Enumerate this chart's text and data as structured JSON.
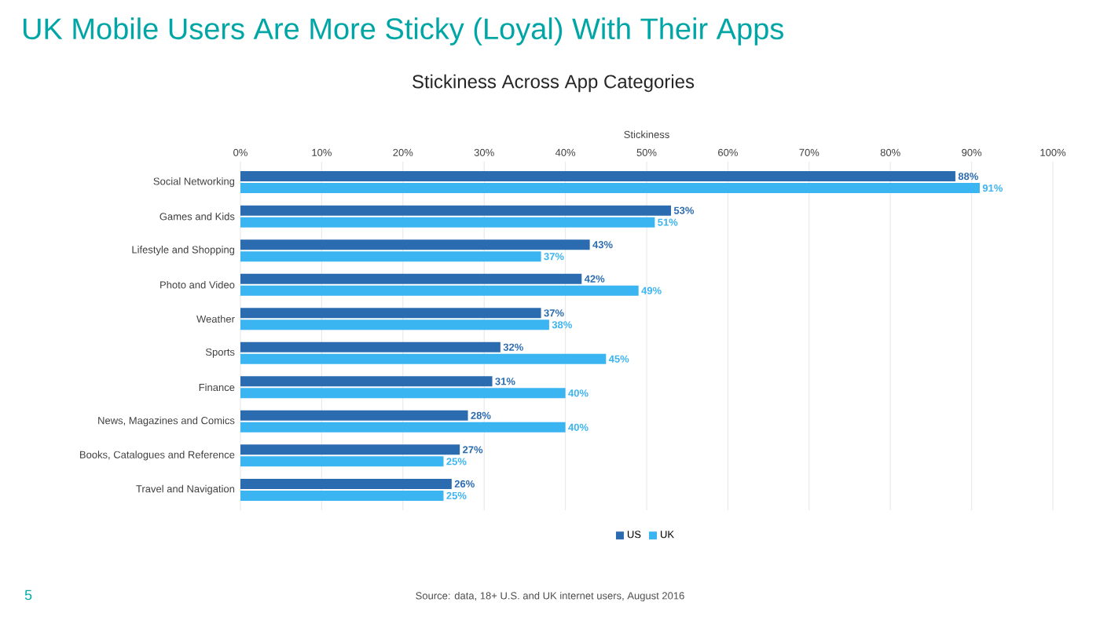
{
  "chart_data": {
    "type": "bar",
    "orientation": "horizontal",
    "title": "UK Mobile Users Are More Sticky (Loyal) With Their Apps",
    "subtitle": "Stickiness Across App Categories",
    "xlabel": "Stickiness",
    "categories": [
      "Social Networking",
      "Games and Kids",
      "Lifestyle and Shopping",
      "Photo and Video",
      "Weather",
      "Sports",
      "Finance",
      "News, Magazines and Comics",
      "Books, Catalogues and Reference",
      "Travel and Navigation"
    ],
    "series": [
      {
        "name": "US",
        "color": "#2b6cb0",
        "values": [
          88,
          53,
          43,
          42,
          37,
          32,
          31,
          28,
          27,
          26
        ],
        "value_labels": [
          "88%",
          "53%",
          "43%",
          "42%",
          "37%",
          "32%",
          "31%",
          "28%",
          "27%",
          "26%"
        ]
      },
      {
        "name": "UK",
        "color": "#3bb4f2",
        "values": [
          91,
          51,
          37,
          49,
          38,
          45,
          40,
          40,
          25,
          25
        ],
        "value_labels": [
          "91%",
          "51%",
          "37%",
          "49%",
          "38%",
          "45%",
          "40%",
          "40%",
          "25%",
          "25%"
        ]
      }
    ],
    "xlim": [
      0,
      100
    ],
    "xticks": [
      {
        "value": 0,
        "label": "0%"
      },
      {
        "value": 10,
        "label": "10%"
      },
      {
        "value": 20,
        "label": "20%"
      },
      {
        "value": 30,
        "label": "30%"
      },
      {
        "value": 40,
        "label": "40%"
      },
      {
        "value": 50,
        "label": "50%"
      },
      {
        "value": 60,
        "label": "60%"
      },
      {
        "value": 70,
        "label": "70%"
      },
      {
        "value": 80,
        "label": "80%"
      },
      {
        "value": 90,
        "label": "90%"
      },
      {
        "value": 100,
        "label": "100%"
      }
    ],
    "grid": "x",
    "legend": "bottom",
    "annotations": [
      "Source: data, 18+ U.S. and UK internet users, August 2016",
      "5"
    ]
  }
}
